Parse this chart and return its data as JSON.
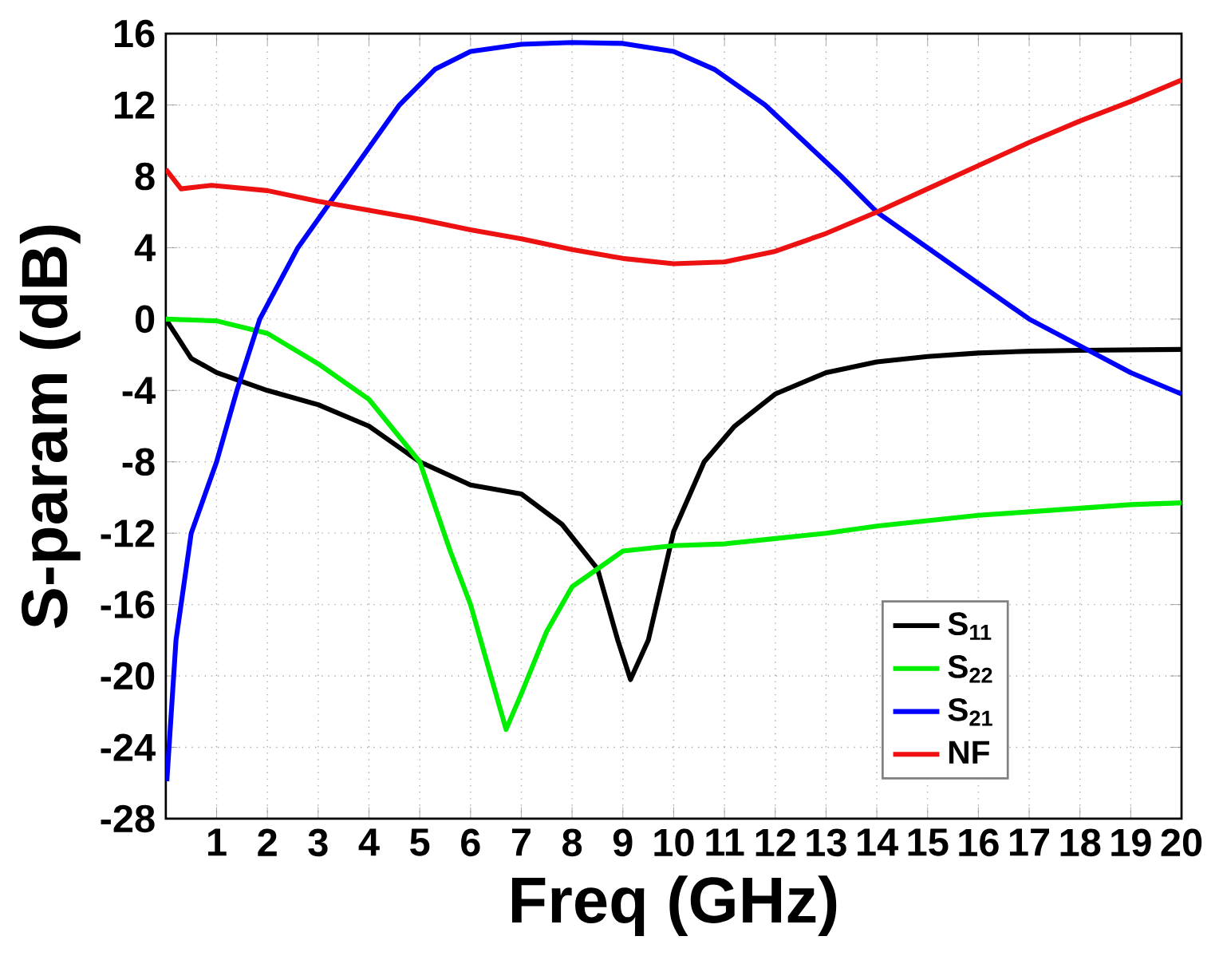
{
  "chart_data": {
    "type": "line",
    "xlabel": "Freq (GHz)",
    "ylabel": "S-param (dB)",
    "xlim": [
      0,
      20
    ],
    "xticks": [
      1,
      2,
      3,
      4,
      5,
      6,
      7,
      8,
      9,
      10,
      11,
      12,
      13,
      14,
      15,
      16,
      17,
      18,
      19,
      20
    ],
    "ylim": [
      -28,
      16
    ],
    "yticks": [
      -28,
      -24,
      -20,
      -16,
      -12,
      -8,
      -4,
      0,
      4,
      8,
      12,
      16
    ],
    "grid": true,
    "legend": "bottom right",
    "line_style": "solid",
    "marker": "none",
    "series": [
      {
        "name": "S$_{11}$",
        "color": "#000000",
        "x": [
          0,
          0.5,
          1,
          2,
          3,
          4,
          5,
          6,
          7,
          7.8,
          8.5,
          8.9,
          9.15,
          9.5,
          10,
          10.6,
          11.2,
          12,
          13,
          14,
          15,
          16,
          17,
          18,
          20
        ],
        "values": [
          0,
          -2.2,
          -3,
          -4,
          -4.8,
          -6,
          -8,
          -9.3,
          -9.8,
          -11.5,
          -14,
          -18,
          -20.2,
          -18,
          -11.9,
          -8,
          -6,
          -4.2,
          -3,
          -2.4,
          -2.1,
          -1.9,
          -1.8,
          -1.75,
          -1.7
        ]
      },
      {
        "name": "S$_{22}$",
        "color": "#00ee00",
        "x": [
          0,
          1,
          2,
          3,
          4,
          5,
          5.6,
          6,
          6.4,
          6.7,
          7,
          7.5,
          8,
          8.7,
          9,
          10,
          11,
          12,
          13,
          14,
          15,
          16,
          17,
          18,
          19,
          20
        ],
        "values": [
          0,
          -0.1,
          -0.8,
          -2.5,
          -4.5,
          -8,
          -13,
          -16,
          -20,
          -23,
          -21,
          -17.5,
          -15,
          -13.6,
          -13,
          -12.7,
          -12.6,
          -12.3,
          -12,
          -11.6,
          -11.3,
          -11,
          -10.8,
          -10.6,
          -10.4,
          -10.3
        ]
      },
      {
        "name": "S$_{21}$",
        "color": "#0000ff",
        "x": [
          0.02,
          0.2,
          0.5,
          1,
          1.4,
          1.85,
          2.6,
          3.6,
          4.6,
          5.3,
          6,
          7,
          8,
          9,
          10,
          10.8,
          11.8,
          13.3,
          14,
          15,
          16,
          17,
          18,
          19,
          20
        ],
        "values": [
          -25.9,
          -18,
          -12,
          -8,
          -4,
          0,
          4,
          8,
          12,
          14,
          15,
          15.4,
          15.5,
          15.45,
          15,
          14,
          12,
          8,
          6,
          4,
          2,
          0,
          -1.5,
          -3,
          -4.2
        ]
      },
      {
        "name": "NF",
        "color": "#ee1111",
        "x": [
          0,
          0.3,
          0.9,
          2,
          3,
          4,
          5,
          6,
          7,
          8,
          9,
          10,
          11,
          12,
          13,
          14,
          15,
          16,
          17,
          18,
          19,
          20
        ],
        "values": [
          8.4,
          7.3,
          7.5,
          7.2,
          6.6,
          6.1,
          5.6,
          5,
          4.5,
          3.9,
          3.4,
          3.1,
          3.2,
          3.8,
          4.8,
          6,
          7.3,
          8.6,
          9.9,
          11.1,
          12.2,
          13.4
        ]
      }
    ]
  }
}
